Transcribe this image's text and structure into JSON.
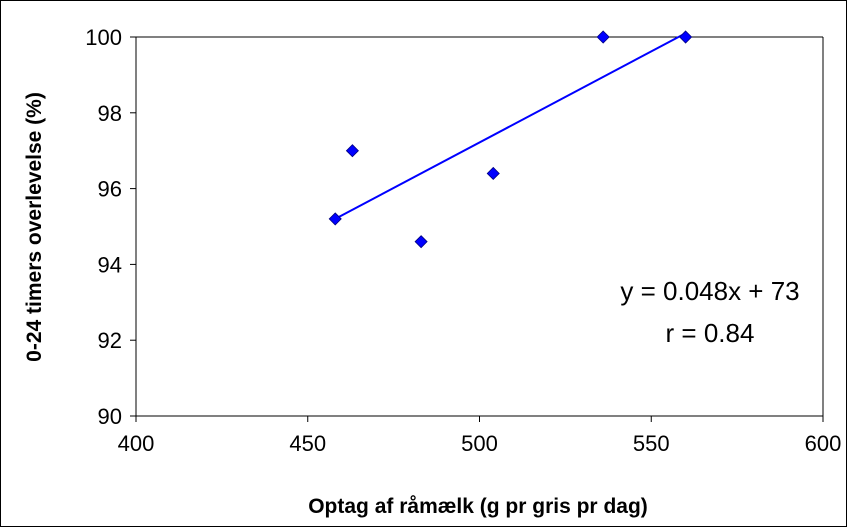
{
  "chart_data": {
    "type": "scatter",
    "title": "",
    "xlabel": "Optag af råmælk (g pr gris pr dag)",
    "ylabel": "0-24 timers overlevelse (%)",
    "xlim": [
      400,
      600
    ],
    "ylim": [
      90,
      100
    ],
    "xticks": [
      400,
      450,
      500,
      550,
      600
    ],
    "yticks": [
      90,
      92,
      94,
      96,
      98,
      100
    ],
    "grid": false,
    "legend": "none",
    "marker": "diamond",
    "point_color": "#0000ff",
    "series": [
      {
        "x": [
          458,
          463,
          483,
          504,
          536,
          560
        ],
        "y": [
          95.2,
          97.0,
          94.6,
          96.4,
          100.0,
          100.0
        ]
      }
    ],
    "trendline": {
      "x": [
        458,
        560
      ],
      "y": [
        95.2,
        100.1
      ],
      "color": "#0000ff"
    },
    "annotations": [
      "y = 0.048x + 73",
      "r = 0.84"
    ]
  }
}
